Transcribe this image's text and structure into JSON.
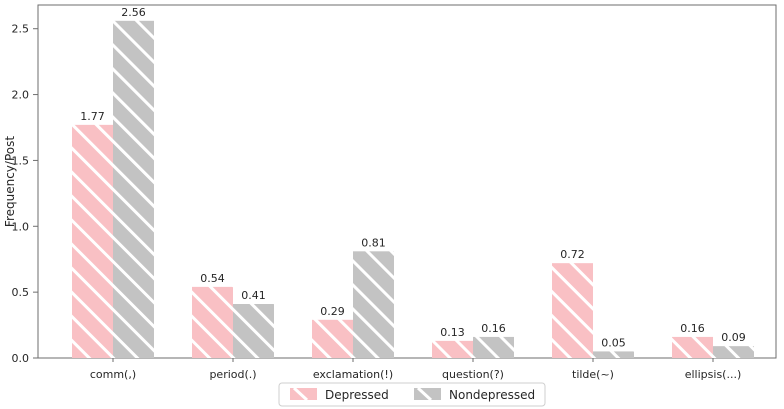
{
  "chart_data": {
    "type": "bar",
    "title": "",
    "xlabel": "",
    "ylabel": "Frequency/Post",
    "categories": [
      "comm(,)",
      "period(.)",
      "exclamation(!)",
      "question(?)",
      "tilde(~)",
      "ellipsis(...)"
    ],
    "series": [
      {
        "name": "Depressed",
        "color": "#f9c0c4",
        "hatch": "\\",
        "values": [
          1.77,
          0.54,
          0.29,
          0.13,
          0.72,
          0.16
        ]
      },
      {
        "name": "Nondepressed",
        "color": "#c3c3c3",
        "hatch": "\\",
        "values": [
          2.56,
          0.41,
          0.81,
          0.16,
          0.05,
          0.09
        ]
      }
    ],
    "bar_value_labels": [
      "1.77",
      "0.54",
      "0.29",
      "0.13",
      "0.72",
      "0.16",
      "2.56",
      "0.41",
      "0.81",
      "0.16",
      "0.05",
      "0.09"
    ],
    "yticks": [
      0.0,
      0.5,
      1.0,
      1.5,
      2.0,
      2.5
    ],
    "ytick_labels": [
      "0.0",
      "0.5",
      "1.0",
      "1.5",
      "2.0",
      "2.5"
    ],
    "ylim": [
      0,
      2.68
    ],
    "grid": false,
    "legend": {
      "position": "bottom-center",
      "entries": [
        "Depressed",
        "Nondepressed"
      ]
    },
    "hatch_color": "#ffffff"
  },
  "styles": {
    "background": "#ffffff",
    "spine_color": "#6e6e6e",
    "tick_color": "#6e6e6e",
    "text_color": "#262626",
    "legend_border_color": "#cfcfcf",
    "legend_background": "#ffffff"
  }
}
